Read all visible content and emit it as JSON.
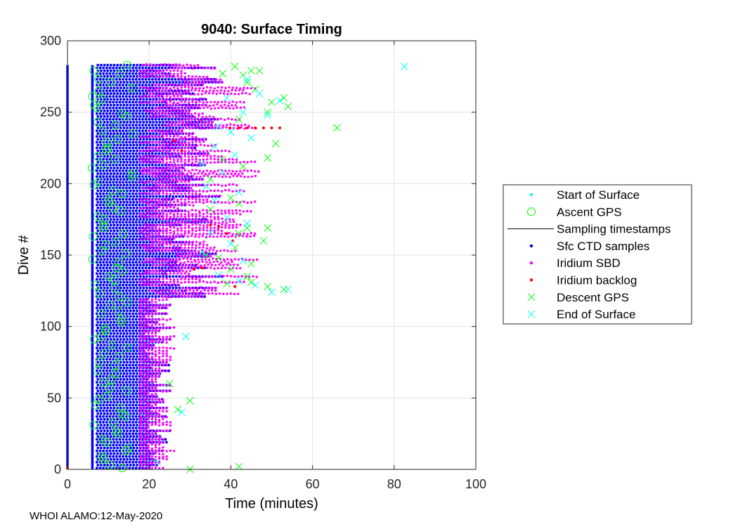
{
  "chart_data": {
    "type": "scatter",
    "title": "9040: Surface Timing",
    "xlabel": "Time (minutes)",
    "ylabel": "Dive #",
    "xlim": [
      0,
      100
    ],
    "ylim": [
      0,
      300
    ],
    "xticks": [
      "0",
      "20",
      "40",
      "60",
      "80",
      "100"
    ],
    "yticks": [
      "0",
      "50",
      "100",
      "150",
      "200",
      "250",
      "300"
    ],
    "grid": true,
    "legend_position": "outside-right",
    "dive_range": [
      1,
      283
    ],
    "ctd_sample_interval_min": 0.5,
    "series": [
      {
        "name": "Start of Surface",
        "marker": "dot",
        "color": "#00ffff",
        "value_x": 0
      },
      {
        "name": "Ascent GPS",
        "marker": "circle",
        "color": "#00ff00",
        "x_range_min": [
          6,
          16
        ]
      },
      {
        "name": "Sampling timestamps",
        "marker": "line",
        "color": "#0000ff",
        "columns_x": [
          0,
          6.1
        ],
        "legend_color": "#000000"
      },
      {
        "name": "Sfc CTD samples",
        "marker": "dot",
        "color": "#0000ff",
        "end_by_segment": [
          {
            "dives": [
              1,
              120
            ],
            "x_end_min": [
              19,
              26
            ]
          },
          {
            "dives": [
              121,
              283
            ],
            "x_end_min": [
              22,
              38
            ]
          }
        ]
      },
      {
        "name": "Iridium SBD",
        "marker": "dot",
        "color": "#ff00ff",
        "end_by_segment": [
          {
            "dives": [
              1,
              120
            ],
            "x_end_min": [
              20,
              27
            ]
          },
          {
            "dives": [
              121,
              283
            ],
            "x_end_min": [
              26,
              47
            ]
          }
        ]
      },
      {
        "name": "Iridium backlog",
        "marker": "dot",
        "color": "#ff0000",
        "points": [
          [
            39.8,
            239
          ],
          [
            42,
            239
          ],
          [
            44,
            239
          ],
          [
            46,
            239
          ],
          [
            48,
            239
          ],
          [
            50,
            239
          ],
          [
            52,
            239
          ],
          [
            35,
            171
          ],
          [
            37,
            170
          ],
          [
            39,
            165
          ],
          [
            40.5,
            160
          ],
          [
            31,
            140
          ],
          [
            33,
            141
          ],
          [
            41,
            128
          ],
          [
            26,
            230
          ],
          [
            28,
            223
          ],
          [
            0,
            1
          ]
        ]
      },
      {
        "name": "Descent GPS",
        "marker": "x",
        "color": "#00ff00",
        "points": [
          [
            41,
            282
          ],
          [
            45,
            279
          ],
          [
            47,
            279
          ],
          [
            43,
            276
          ],
          [
            38,
            277
          ],
          [
            44,
            271
          ],
          [
            46,
            266
          ],
          [
            53,
            260
          ],
          [
            50,
            257
          ],
          [
            54,
            254
          ],
          [
            49,
            250
          ],
          [
            42,
            245
          ],
          [
            66,
            239
          ],
          [
            51,
            228
          ],
          [
            49,
            218
          ],
          [
            38,
            217
          ],
          [
            43,
            212
          ],
          [
            35,
            203
          ],
          [
            40,
            190
          ],
          [
            42,
            186
          ],
          [
            35,
            182
          ],
          [
            44,
            169
          ],
          [
            49,
            169
          ],
          [
            42,
            165
          ],
          [
            48,
            160
          ],
          [
            41,
            155
          ],
          [
            34,
            150
          ],
          [
            37,
            148
          ],
          [
            45,
            144
          ],
          [
            40,
            140
          ],
          [
            44,
            135
          ],
          [
            39,
            130
          ],
          [
            49,
            128
          ],
          [
            53,
            126
          ],
          [
            45,
            131
          ],
          [
            30,
            48
          ],
          [
            42,
            2
          ],
          [
            30,
            0
          ],
          [
            27,
            42
          ],
          [
            25,
            60
          ]
        ]
      },
      {
        "name": "End of Surface",
        "marker": "x",
        "color": "#00ffff",
        "points": [
          [
            82.5,
            282
          ],
          [
            44,
            273
          ],
          [
            47,
            263
          ],
          [
            39,
            260
          ],
          [
            52,
            258
          ],
          [
            43,
            250
          ],
          [
            49,
            248
          ],
          [
            37,
            240
          ],
          [
            40,
            236
          ],
          [
            45,
            232
          ],
          [
            36,
            226
          ],
          [
            41,
            220
          ],
          [
            33,
            214
          ],
          [
            38,
            208
          ],
          [
            34,
            198
          ],
          [
            42,
            194
          ],
          [
            36,
            188
          ],
          [
            39,
            176
          ],
          [
            44,
            172
          ],
          [
            35,
            166
          ],
          [
            40,
            158
          ],
          [
            33,
            152
          ],
          [
            43,
            146
          ],
          [
            37,
            136
          ],
          [
            42,
            132
          ],
          [
            46,
            129
          ],
          [
            50,
            124
          ],
          [
            54,
            126
          ],
          [
            29,
            93
          ],
          [
            28,
            40
          ],
          [
            22,
            5
          ]
        ]
      }
    ]
  },
  "footer": "WHOI ALAMO:12-May-2020"
}
